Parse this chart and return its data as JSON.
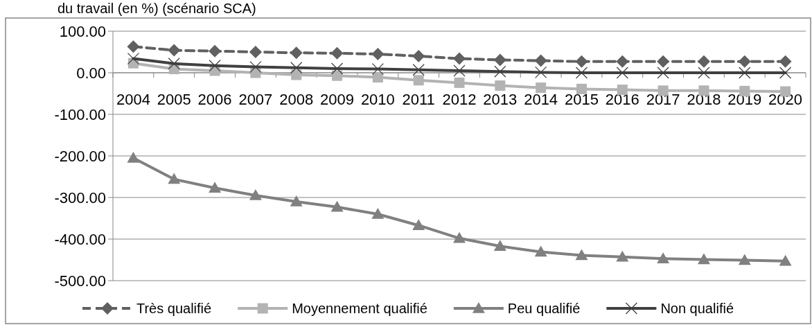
{
  "chart_data": {
    "type": "line",
    "title": "du travail (en %) (scénario SCA)",
    "categories": [
      "2004",
      "2005",
      "2006",
      "2007",
      "2008",
      "2009",
      "2010",
      "2011",
      "2012",
      "2013",
      "2014",
      "2015",
      "2016",
      "2017",
      "2018",
      "2019",
      "2020"
    ],
    "ylim": [
      -500,
      100
    ],
    "yticks": [
      {
        "value": 100,
        "label": "100.00"
      },
      {
        "value": 0,
        "label": "0.00"
      },
      {
        "value": -100,
        "label": "-100.00"
      },
      {
        "value": -200,
        "label": "-200.00"
      },
      {
        "value": -300,
        "label": "-300.00"
      },
      {
        "value": -400,
        "label": "-400.00"
      },
      {
        "value": -500,
        "label": "-500.00"
      }
    ],
    "grid": "y",
    "legend": "bottom",
    "series": [
      {
        "name": "Très qualifié",
        "color": "#606060",
        "marker": "diamond",
        "line_style": "dashed",
        "values": [
          63,
          54,
          52,
          50,
          48,
          47,
          45,
          40,
          34,
          31,
          29,
          27,
          27,
          27,
          27,
          27,
          27
        ]
      },
      {
        "name": "Moyennement qualifié",
        "color": "#b3b3b3",
        "marker": "square",
        "line_style": "solid",
        "values": [
          23,
          9,
          5,
          0,
          -5,
          -7,
          -11,
          -18,
          -24,
          -31,
          -36,
          -39,
          -41,
          -43,
          -43,
          -44,
          -45
        ]
      },
      {
        "name": "Peu qualifié",
        "color": "#808080",
        "marker": "triangle",
        "line_style": "solid",
        "values": [
          -205,
          -256,
          -277,
          -295,
          -310,
          -323,
          -340,
          -367,
          -398,
          -417,
          -431,
          -439,
          -443,
          -447,
          -449,
          -451,
          -453
        ]
      },
      {
        "name": "Non qualifié",
        "color": "#404040",
        "marker": "cross",
        "line_style": "solid",
        "values": [
          34,
          22,
          17,
          14,
          12,
          10,
          9,
          7,
          5,
          3,
          1,
          0,
          0,
          0,
          0,
          0,
          0
        ]
      }
    ]
  }
}
